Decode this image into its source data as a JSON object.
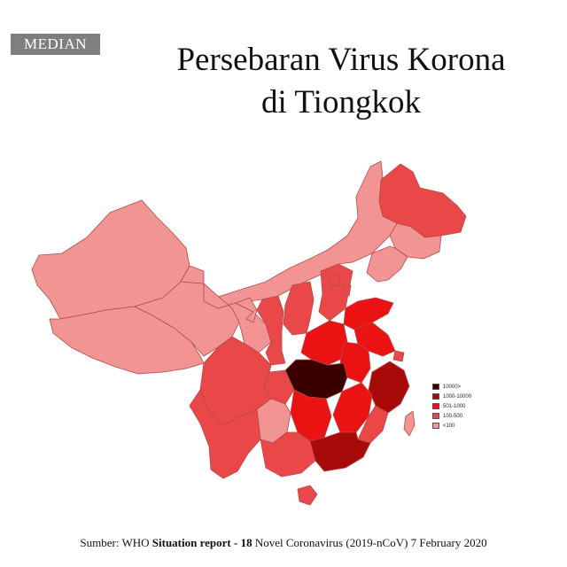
{
  "logo": {
    "text": "MEDIAN"
  },
  "title": {
    "line1": "Persebaran Virus Korona",
    "line2": "di Tiongkok"
  },
  "legend": [
    {
      "label": "10000>",
      "color": "#3a0000"
    },
    {
      "label": "1000-10000",
      "color": "#a80a0a"
    },
    {
      "label": "501-1000",
      "color": "#ea1212"
    },
    {
      "label": "100-500",
      "color": "#ea4848"
    },
    {
      "label": "<100",
      "color": "#f29494"
    }
  ],
  "source": {
    "part1": "Sumber: WHO ",
    "bold1": "Situation report - 18",
    "part2": " Novel Coronavirus (2019-nCoV) 7 February 2020"
  },
  "colors": {
    "border": "#b34a4a",
    "background": "#ffffff"
  }
}
